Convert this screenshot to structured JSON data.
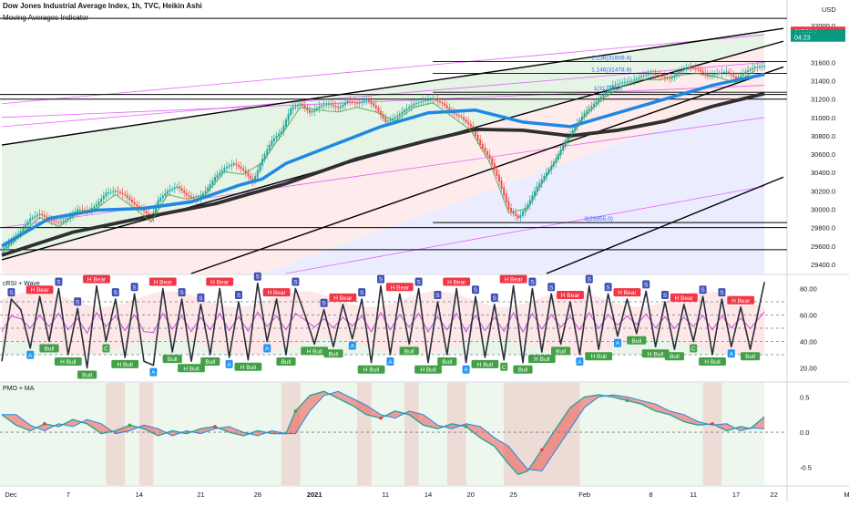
{
  "header": {
    "symbol": "Dow Jones Industrial Average Index, 1h, TVC, Heikin Ashi",
    "indicator": "Moving Averages Indicator",
    "currency": "USD"
  },
  "panes": {
    "rsi": {
      "label": "cRSI + Wave",
      "ticks": [
        "80.00",
        "60.00",
        "40.00",
        "20.00"
      ]
    },
    "pmo": {
      "label": "PMO + MA",
      "ticks": [
        "0.5",
        "0.0",
        "-0.5"
      ]
    }
  },
  "price_tags": [
    {
      "text": "31564.4",
      "color": "#f23645"
    },
    {
      "text": "31557.0",
      "color": "#089981"
    },
    {
      "text": "04:23",
      "color": "#089981"
    }
  ],
  "fib_labels": [
    "1.236(31609.4)",
    "1.146(31478.9)",
    "1(31274.8)",
    "0(29855.0)"
  ],
  "signal_labels": [
    "Bear",
    "H Bear",
    "H Bull",
    "Bull",
    "A",
    "C",
    "S",
    "B",
    "M",
    "D"
  ],
  "chart_data": {
    "type": "candlestick",
    "ylim": [
      29300,
      32200
    ],
    "y_ticks": [
      "31600.0",
      "31400.0",
      "31200.0",
      "31000.0",
      "30800.0",
      "30600.0",
      "30400.0",
      "30200.0",
      "30000.0",
      "29800.0",
      "29600.0",
      "29400.0"
    ],
    "top_tick": "32000.0",
    "x_ticks": [
      "Dec",
      "7",
      "14",
      "21",
      "28",
      "2021",
      "11",
      "14",
      "20",
      "25",
      "Feb",
      "8",
      "11",
      "17",
      "22",
      "Mar"
    ],
    "close_path": [
      [
        0,
        29560
      ],
      [
        4,
        29660
      ],
      [
        8,
        29760
      ],
      [
        12,
        29900
      ],
      [
        16,
        29950
      ],
      [
        20,
        29880
      ],
      [
        24,
        29850
      ],
      [
        28,
        29900
      ],
      [
        32,
        30000
      ],
      [
        36,
        29980
      ],
      [
        40,
        30050
      ],
      [
        44,
        30180
      ],
      [
        48,
        30200
      ],
      [
        52,
        30150
      ],
      [
        56,
        30050
      ],
      [
        60,
        29980
      ],
      [
        63,
        29900
      ],
      [
        66,
        30100
      ],
      [
        70,
        30200
      ],
      [
        74,
        30250
      ],
      [
        78,
        30150
      ],
      [
        82,
        30100
      ],
      [
        86,
        30200
      ],
      [
        90,
        30350
      ],
      [
        94,
        30450
      ],
      [
        98,
        30500
      ],
      [
        102,
        30420
      ],
      [
        106,
        30300
      ],
      [
        110,
        30550
      ],
      [
        114,
        30750
      ],
      [
        118,
        30850
      ],
      [
        122,
        31100
      ],
      [
        126,
        31150
      ],
      [
        130,
        31050
      ],
      [
        134,
        31120
      ],
      [
        138,
        31150
      ],
      [
        142,
        31100
      ],
      [
        146,
        31180
      ],
      [
        150,
        31150
      ],
      [
        154,
        31200
      ],
      [
        158,
        31100
      ],
      [
        162,
        30950
      ],
      [
        166,
        31000
      ],
      [
        170,
        31080
      ],
      [
        174,
        31150
      ],
      [
        178,
        31180
      ],
      [
        182,
        31200
      ],
      [
        186,
        31150
      ],
      [
        190,
        31050
      ],
      [
        194,
        31000
      ],
      [
        198,
        30900
      ],
      [
        202,
        30700
      ],
      [
        206,
        30550
      ],
      [
        210,
        30300
      ],
      [
        214,
        30000
      ],
      [
        218,
        29900
      ],
      [
        222,
        30050
      ],
      [
        226,
        30250
      ],
      [
        230,
        30400
      ],
      [
        234,
        30550
      ],
      [
        238,
        30750
      ],
      [
        242,
        30900
      ],
      [
        246,
        31050
      ],
      [
        250,
        31150
      ],
      [
        254,
        31250
      ],
      [
        258,
        31350
      ],
      [
        262,
        31380
      ],
      [
        266,
        31400
      ],
      [
        270,
        31450
      ],
      [
        274,
        31480
      ],
      [
        278,
        31450
      ],
      [
        282,
        31420
      ],
      [
        286,
        31500
      ],
      [
        290,
        31550
      ],
      [
        294,
        31520
      ],
      [
        298,
        31450
      ],
      [
        302,
        31480
      ],
      [
        306,
        31500
      ],
      [
        310,
        31420
      ],
      [
        314,
        31500
      ],
      [
        318,
        31550
      ],
      [
        322,
        31560
      ]
    ],
    "ema_fast": [
      [
        0,
        29600
      ],
      [
        20,
        29900
      ],
      [
        40,
        29990
      ],
      [
        60,
        30010
      ],
      [
        80,
        30080
      ],
      [
        100,
        30260
      ],
      [
        110,
        30330
      ],
      [
        120,
        30500
      ],
      [
        140,
        30700
      ],
      [
        160,
        30900
      ],
      [
        180,
        31050
      ],
      [
        200,
        31080
      ],
      [
        220,
        30950
      ],
      [
        240,
        30900
      ],
      [
        260,
        31050
      ],
      [
        280,
        31200
      ],
      [
        300,
        31350
      ],
      [
        322,
        31470
      ]
    ],
    "ema_slow": [
      [
        0,
        29500
      ],
      [
        30,
        29750
      ],
      [
        60,
        29910
      ],
      [
        90,
        30060
      ],
      [
        120,
        30280
      ],
      [
        150,
        30550
      ],
      [
        180,
        30750
      ],
      [
        200,
        30870
      ],
      [
        220,
        30860
      ],
      [
        240,
        30800
      ],
      [
        260,
        30860
      ],
      [
        280,
        30960
      ],
      [
        300,
        31120
      ],
      [
        322,
        31260
      ]
    ],
    "fib_levels": [
      31609.4,
      31478.9,
      31274.8,
      29855.0
    ],
    "series": [
      {
        "name": "cRSI + Wave"
      },
      {
        "name": "PMO + MA"
      }
    ],
    "rsi_ylim": [
      10,
      90
    ],
    "rsi_bands": [
      70,
      60,
      50,
      40,
      30
    ],
    "rsi_values": [
      [
        0,
        25
      ],
      [
        4,
        72
      ],
      [
        8,
        64
      ],
      [
        12,
        35
      ],
      [
        16,
        74
      ],
      [
        20,
        40
      ],
      [
        24,
        80
      ],
      [
        28,
        30
      ],
      [
        32,
        65
      ],
      [
        36,
        20
      ],
      [
        40,
        82
      ],
      [
        44,
        40
      ],
      [
        48,
        72
      ],
      [
        52,
        28
      ],
      [
        56,
        76
      ],
      [
        60,
        25
      ],
      [
        64,
        22
      ],
      [
        68,
        80
      ],
      [
        72,
        32
      ],
      [
        76,
        72
      ],
      [
        80,
        25
      ],
      [
        84,
        68
      ],
      [
        88,
        30
      ],
      [
        92,
        80
      ],
      [
        96,
        28
      ],
      [
        100,
        70
      ],
      [
        104,
        26
      ],
      [
        108,
        84
      ],
      [
        112,
        40
      ],
      [
        116,
        72
      ],
      [
        120,
        30
      ],
      [
        124,
        80
      ],
      [
        128,
        60
      ],
      [
        132,
        38
      ],
      [
        136,
        64
      ],
      [
        140,
        36
      ],
      [
        144,
        68
      ],
      [
        148,
        42
      ],
      [
        152,
        72
      ],
      [
        156,
        24
      ],
      [
        160,
        82
      ],
      [
        164,
        30
      ],
      [
        168,
        76
      ],
      [
        172,
        38
      ],
      [
        176,
        80
      ],
      [
        180,
        24
      ],
      [
        184,
        70
      ],
      [
        188,
        30
      ],
      [
        192,
        80
      ],
      [
        196,
        24
      ],
      [
        200,
        74
      ],
      [
        204,
        28
      ],
      [
        208,
        68
      ],
      [
        212,
        26
      ],
      [
        216,
        82
      ],
      [
        220,
        24
      ],
      [
        224,
        80
      ],
      [
        228,
        32
      ],
      [
        232,
        76
      ],
      [
        236,
        38
      ],
      [
        240,
        70
      ],
      [
        244,
        30
      ],
      [
        248,
        82
      ],
      [
        252,
        34
      ],
      [
        256,
        76
      ],
      [
        260,
        44
      ],
      [
        264,
        72
      ],
      [
        268,
        46
      ],
      [
        272,
        78
      ],
      [
        276,
        36
      ],
      [
        280,
        70
      ],
      [
        284,
        34
      ],
      [
        288,
        68
      ],
      [
        292,
        40
      ],
      [
        296,
        74
      ],
      [
        300,
        30
      ],
      [
        304,
        72
      ],
      [
        308,
        36
      ],
      [
        312,
        66
      ],
      [
        316,
        34
      ],
      [
        322,
        85
      ]
    ],
    "pmo_ylim": [
      -0.75,
      0.7
    ],
    "pmo_ticks": [
      0.5,
      0.0,
      -0.5
    ],
    "pmo_values": [
      [
        0,
        0.25
      ],
      [
        6,
        0.1
      ],
      [
        12,
        0.02
      ],
      [
        18,
        0.12
      ],
      [
        24,
        0.08
      ],
      [
        30,
        0.18
      ],
      [
        36,
        0.12
      ],
      [
        42,
        -0.02
      ],
      [
        48,
        0.02
      ],
      [
        54,
        0.1
      ],
      [
        60,
        0.05
      ],
      [
        66,
        -0.05
      ],
      [
        72,
        0.02
      ],
      [
        78,
        -0.02
      ],
      [
        84,
        0.05
      ],
      [
        90,
        0.08
      ],
      [
        96,
        0.0
      ],
      [
        102,
        -0.05
      ],
      [
        108,
        0.02
      ],
      [
        114,
        -0.02
      ],
      [
        120,
        -0.02
      ],
      [
        124,
        0.3
      ],
      [
        130,
        0.52
      ],
      [
        136,
        0.58
      ],
      [
        142,
        0.48
      ],
      [
        148,
        0.38
      ],
      [
        154,
        0.25
      ],
      [
        160,
        0.2
      ],
      [
        166,
        0.3
      ],
      [
        172,
        0.25
      ],
      [
        178,
        0.1
      ],
      [
        184,
        0.05
      ],
      [
        190,
        0.12
      ],
      [
        196,
        0.08
      ],
      [
        202,
        -0.08
      ],
      [
        208,
        -0.2
      ],
      [
        214,
        -0.45
      ],
      [
        218,
        -0.6
      ],
      [
        222,
        -0.55
      ],
      [
        228,
        -0.25
      ],
      [
        234,
        0.05
      ],
      [
        240,
        0.35
      ],
      [
        246,
        0.5
      ],
      [
        252,
        0.53
      ],
      [
        258,
        0.5
      ],
      [
        264,
        0.45
      ],
      [
        270,
        0.4
      ],
      [
        276,
        0.3
      ],
      [
        282,
        0.25
      ],
      [
        288,
        0.15
      ],
      [
        294,
        0.1
      ],
      [
        300,
        0.12
      ],
      [
        306,
        0.02
      ],
      [
        312,
        0.08
      ],
      [
        316,
        0.05
      ],
      [
        322,
        0.22
      ]
    ],
    "pmo_signal_lag": 2
  }
}
